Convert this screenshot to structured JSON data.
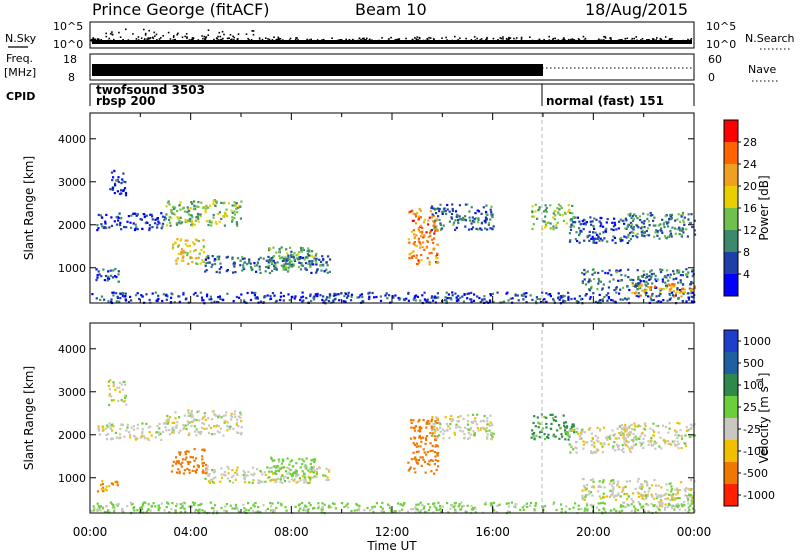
{
  "header": {
    "station": "Prince George (fitACF)",
    "beam": "Beam 10",
    "date": "18/Aug/2015"
  },
  "scan_panel": {
    "left_label": "N.Sky",
    "right_label": "N.Search",
    "y_ticks_left": [
      "10^5",
      "10^0"
    ],
    "y_ticks_right": [
      "10^5",
      "10^0"
    ]
  },
  "freq_panel": {
    "left_label_line1": "Freq.",
    "left_label_line2": "[MHz]",
    "right_label": "Nave",
    "y_ticks_left": [
      "18",
      "8"
    ],
    "y_ticks_right": [
      "60",
      "0"
    ]
  },
  "cpid_panel": {
    "label": "CPID",
    "entries": [
      {
        "line1": "twofsound 3503",
        "line2": "rbsp 200",
        "start_hour": 0
      },
      {
        "line1": "normal (fast) 151",
        "line2": "",
        "start_hour": 18
      }
    ]
  },
  "power_panel": {
    "ylabel": "Slant Range [km]",
    "yticks": [
      "1000",
      "2000",
      "3000",
      "4000"
    ],
    "colorbar_label": "Power [dB]",
    "colorbar_ticks": [
      "4",
      "8",
      "12",
      "16",
      "20",
      "24",
      "28"
    ],
    "colors": [
      "#0000ff",
      "#1e3fa8",
      "#3c8a6c",
      "#6fc04c",
      "#e8d000",
      "#f0a020",
      "#ff6400",
      "#ff0000"
    ]
  },
  "velocity_panel": {
    "ylabel": "Slant Range [km]",
    "yticks": [
      "1000",
      "2000",
      "3000",
      "4000"
    ],
    "colorbar_label": "Velocity [m s^-1]",
    "colorbar_ticks": [
      "1000",
      "500",
      "100",
      "25",
      "-25",
      "-100",
      "-500",
      "-1000"
    ],
    "colors": [
      "#1e3fcc",
      "#2060a0",
      "#2e8a4a",
      "#6ccf3a",
      "#c8c8c0",
      "#f0c000",
      "#f07800",
      "#ff2000"
    ]
  },
  "x_axis": {
    "label": "Time UT",
    "ticks": [
      "00:00",
      "04:00",
      "08:00",
      "12:00",
      "16:00",
      "20:00",
      "00:00"
    ]
  },
  "chart_data": {
    "type": "heatmap",
    "title": "Prince George (fitACF)",
    "x_range_hours": [
      0,
      24
    ],
    "y_range_km": [
      180,
      4600
    ],
    "xlabel": "Time UT",
    "ylabel": "Slant Range [km]",
    "mode_change_hour": 18,
    "echo_regions": [
      {
        "t0": 0.7,
        "t1": 1.4,
        "r0": 2700,
        "r1": 3300,
        "power": 6,
        "velocity": 0
      },
      {
        "t0": 0.2,
        "t1": 3.0,
        "r0": 1900,
        "r1": 2300,
        "power": 5,
        "velocity": 0
      },
      {
        "t0": 3.0,
        "t1": 6.0,
        "r0": 2000,
        "r1": 2600,
        "power": 14,
        "velocity": 0
      },
      {
        "t0": 3.2,
        "t1": 4.6,
        "r0": 1100,
        "r1": 1700,
        "power": 18,
        "velocity": -150
      },
      {
        "t0": 0.2,
        "t1": 1.2,
        "r0": 700,
        "r1": 1000,
        "power": 6,
        "velocity": -120
      },
      {
        "t0": 4.5,
        "t1": 9.5,
        "r0": 900,
        "r1": 1300,
        "power": 8,
        "velocity": 0
      },
      {
        "t0": 7.0,
        "t1": 9.0,
        "r0": 1000,
        "r1": 1500,
        "power": 12,
        "velocity": 60
      },
      {
        "t0": 12.6,
        "t1": 13.8,
        "r0": 1100,
        "r1": 2400,
        "power": 24,
        "velocity": -150
      },
      {
        "t0": 13.5,
        "t1": 16.0,
        "r0": 1900,
        "r1": 2500,
        "power": 8,
        "velocity": 0
      },
      {
        "t0": 17.5,
        "t1": 19.2,
        "r0": 1900,
        "r1": 2500,
        "power": 14,
        "velocity": 120
      },
      {
        "t0": 19.0,
        "t1": 21.5,
        "r0": 1600,
        "r1": 2200,
        "power": 6,
        "velocity": 0
      },
      {
        "t0": 21.0,
        "t1": 24.0,
        "r0": 1700,
        "r1": 2300,
        "power": 10,
        "velocity": 0
      },
      {
        "t0": 19.5,
        "t1": 24.0,
        "r0": 500,
        "r1": 1000,
        "power": 8,
        "velocity": 0
      },
      {
        "t0": 21.5,
        "t1": 24.0,
        "r0": 350,
        "r1": 650,
        "power": 22,
        "velocity": 0
      },
      {
        "t0": 0.0,
        "t1": 24.0,
        "r0": 200,
        "r1": 450,
        "power": 5,
        "velocity": 40
      }
    ]
  }
}
